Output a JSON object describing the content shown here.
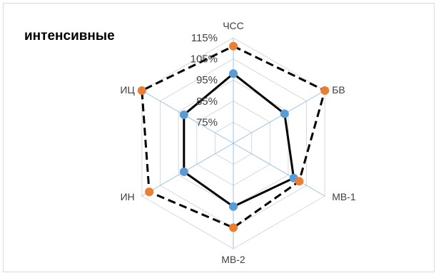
{
  "chart_data": {
    "type": "radar",
    "title": "интенсивные",
    "categories": [
      "ЧСС",
      "БВ",
      "МВ-1",
      "МВ-2",
      "ИН",
      "ИЦ"
    ],
    "ticks": [
      "75%",
      "85%",
      "95%",
      "105%",
      "115%"
    ],
    "tick_values": [
      75,
      85,
      95,
      105,
      115
    ],
    "range": [
      65,
      115
    ],
    "grid": true,
    "series": [
      {
        "values": [
          98,
          93,
          98,
          95,
          92,
          92
        ],
        "color": "#5B9BD5",
        "line_color": "#000000",
        "line_style": "solid"
      },
      {
        "values": [
          111,
          115,
          101,
          105,
          111,
          115
        ],
        "color": "#ED7D31",
        "line_color": "#000000",
        "line_style": "dashed"
      }
    ]
  }
}
